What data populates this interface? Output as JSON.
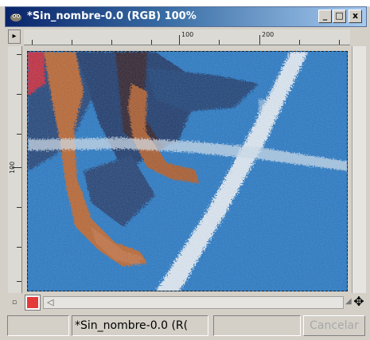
{
  "window": {
    "title": "*Sin_nombre-0.0 (RGB) 100%",
    "min_label": "_",
    "max_label": "□",
    "close_label": "x"
  },
  "rulers": {
    "h_labels": [
      "100",
      "200"
    ],
    "v_labels": [
      "100"
    ],
    "menu_glyph": "▸"
  },
  "canvas": {
    "icon": "image-canvas",
    "colors": {
      "background": "#2176c5",
      "dark_blue": "#102a5a",
      "brown": "#b5602f",
      "red": "#c0283a",
      "white": "#eef4fb"
    }
  },
  "navigation": {
    "qmask_glyph": "▫",
    "hscroll_arrow": "◁",
    "resize_glyph": "◢",
    "move_glyph": "✥"
  },
  "statusbar": {
    "coords": "",
    "image_name": "*Sin_nombre-0.0 (R(",
    "progress": "",
    "cancel_label": "Cancelar"
  }
}
